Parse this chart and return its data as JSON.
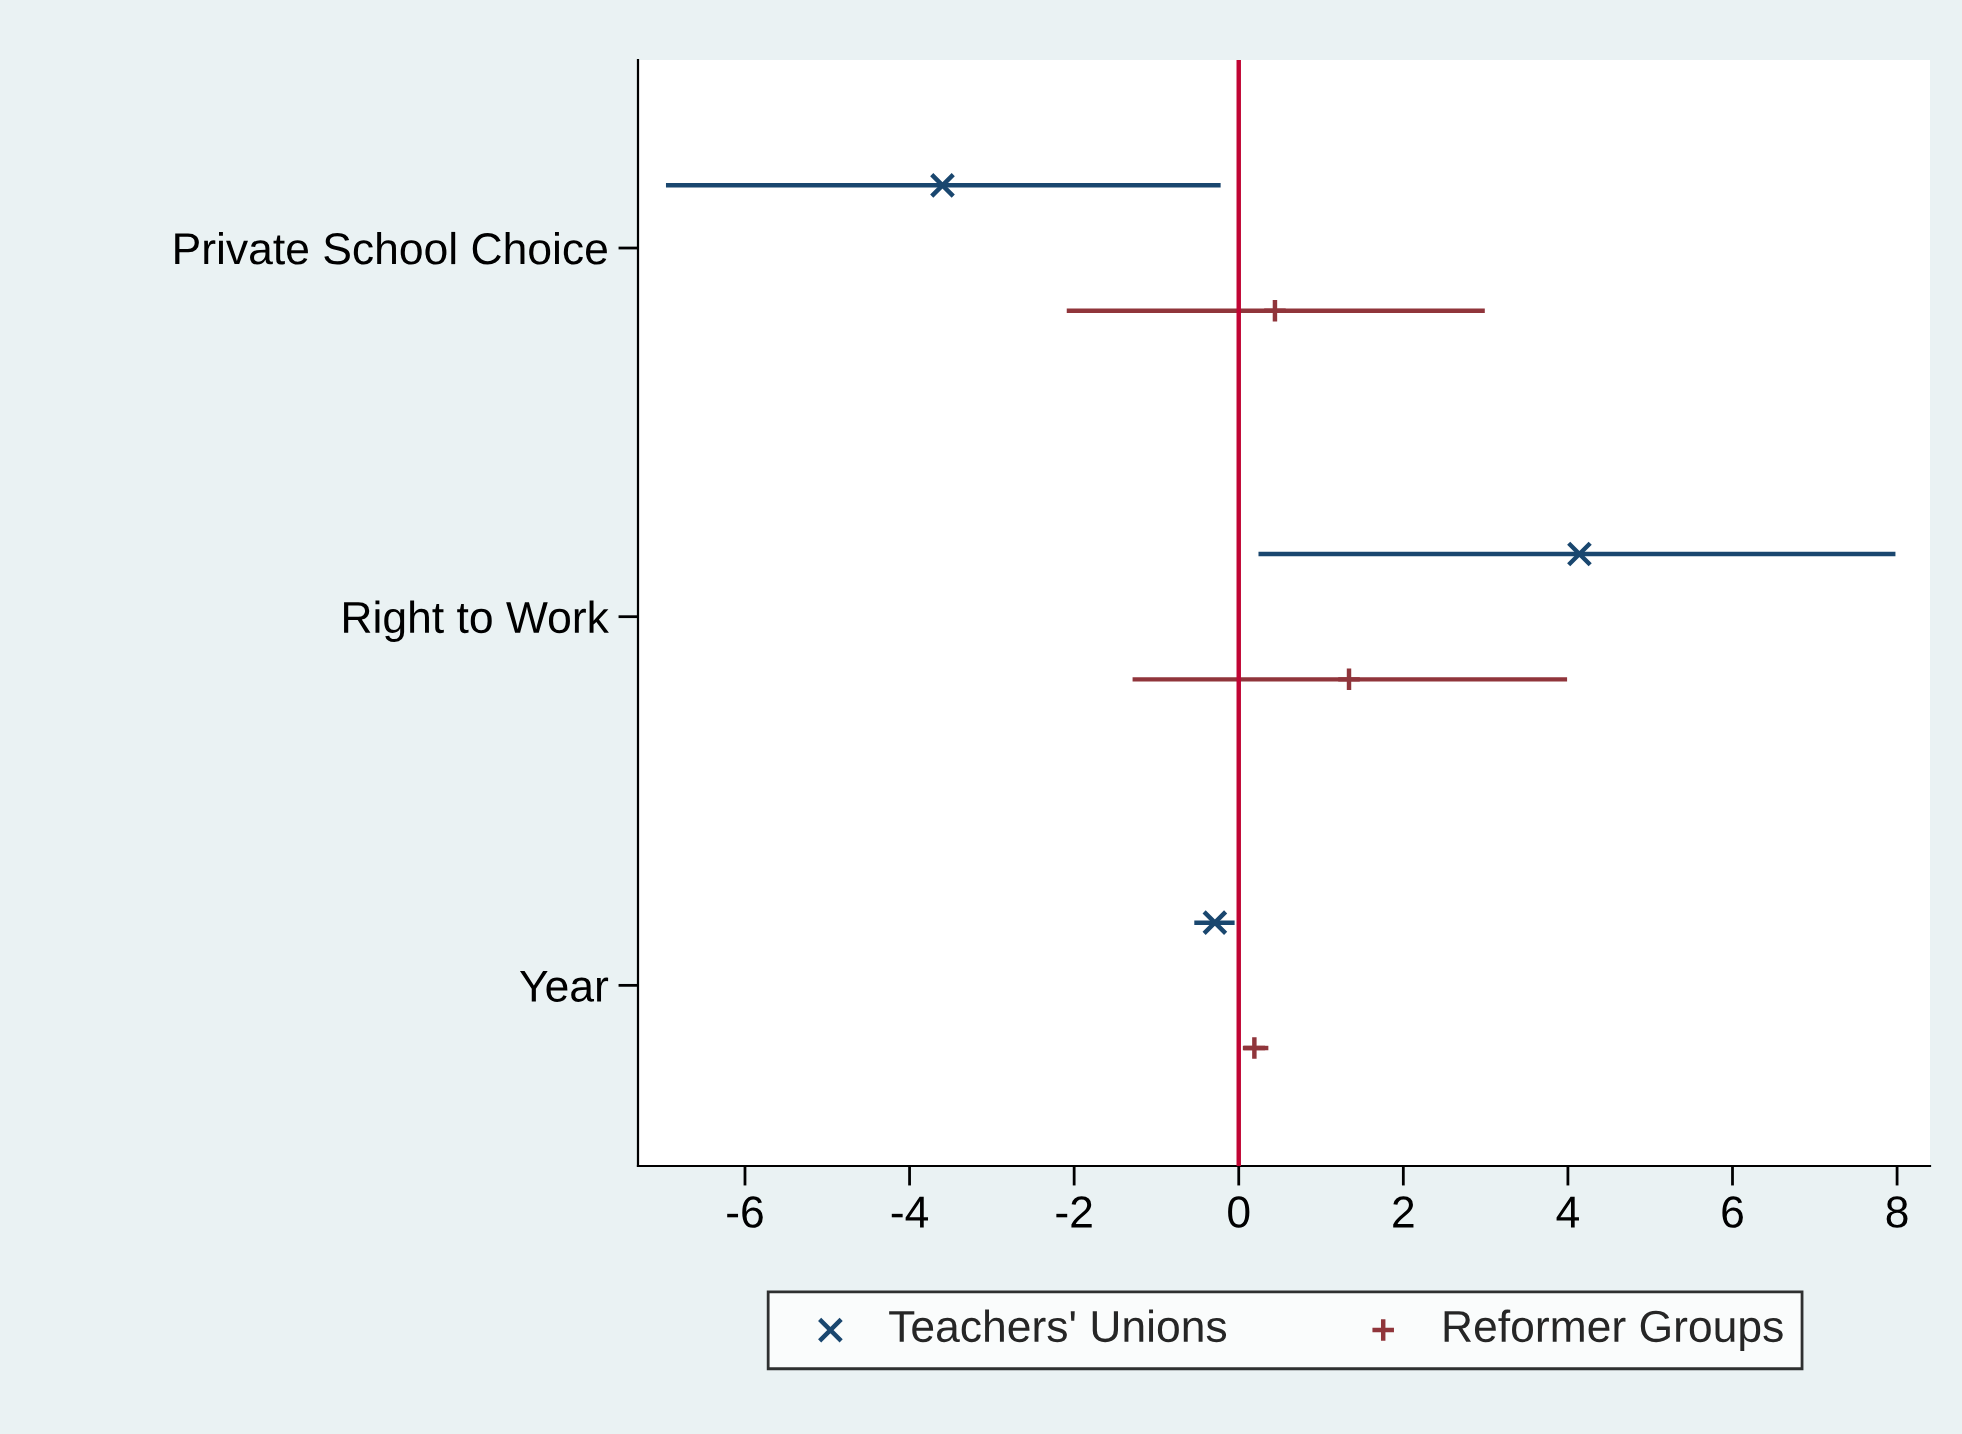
{
  "chart_data": {
    "type": "scatter",
    "orientation": "horizontal",
    "categories": [
      "Private School Choice",
      "Right to Work",
      "Year"
    ],
    "series": [
      {
        "name": "Teachers' Unions",
        "color": "#1a476f",
        "marker": "cross",
        "values": [
          -3.6,
          4.14,
          -0.29
        ],
        "errors": [
          [
            -6.96,
            -0.22
          ],
          [
            0.24,
            7.98
          ],
          [
            -0.54,
            -0.05
          ]
        ]
      },
      {
        "name": "Reformer Groups",
        "color": "#90353b",
        "marker": "plus",
        "values": [
          0.44,
          1.34,
          0.19
        ],
        "errors": [
          [
            -2.09,
            2.99
          ],
          [
            -1.29,
            3.99
          ],
          [
            0.05,
            0.36
          ]
        ]
      }
    ],
    "xlim": [
      -7.3,
      8.4
    ],
    "xticks": [
      -6,
      -4,
      -2,
      0,
      2,
      4,
      6,
      8
    ],
    "ref_lines": [
      {
        "axis": "x",
        "value": 0,
        "color": "#c10534"
      }
    ],
    "legend": "bottom"
  }
}
